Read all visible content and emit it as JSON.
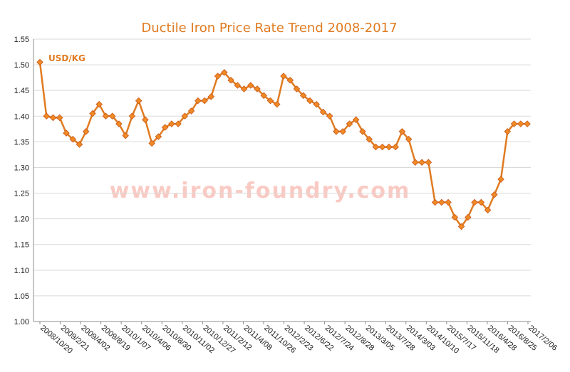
{
  "chart_data": {
    "type": "line",
    "title": "Ductile Iron Price Rate Trend 2008-2017",
    "unit_label": "USD/KG",
    "watermark": "www.iron-foundry.com",
    "ylim": [
      1.0,
      1.55
    ],
    "yticks": [
      "1.00",
      "1.05",
      "1.10",
      "1.15",
      "1.20",
      "1.25",
      "1.30",
      "1.35",
      "1.40",
      "1.45",
      "1.50",
      "1.55"
    ],
    "xtick_labels": [
      "2008/10/20",
      "2009/2/21",
      "2009/4/02",
      "2009/8/19",
      "2010/1/07",
      "2010/4/06",
      "2010/8/30",
      "2010/11/02",
      "2010/12/27",
      "2011/2/12",
      "2011/4/08",
      "2011/10/26",
      "2012/2/23",
      "2012/6/22",
      "2012/7/24",
      "2012/8/28",
      "2013/3/05",
      "2013/7/28",
      "2014/3/03",
      "2014/10/10",
      "2015/7/17",
      "2015/11/18",
      "2016/4/28",
      "2016/8/25",
      "2017/2/06"
    ],
    "grid": true,
    "color": "#e07b21",
    "series": [
      {
        "values": [
          1.505,
          1.4,
          1.397,
          1.397,
          1.367,
          1.355,
          1.345,
          1.37,
          1.405,
          1.423,
          1.4,
          1.4,
          1.385,
          1.362,
          1.4,
          1.43,
          1.393,
          1.347,
          1.36,
          1.378,
          1.385,
          1.385,
          1.4,
          1.41,
          1.43,
          1.43,
          1.438,
          1.478,
          1.485,
          1.47,
          1.46,
          1.453,
          1.46,
          1.453,
          1.44,
          1.43,
          1.423,
          1.478,
          1.47,
          1.453,
          1.44,
          1.43,
          1.423,
          1.408,
          1.4,
          1.37,
          1.37,
          1.385,
          1.393,
          1.37,
          1.355,
          1.34,
          1.34,
          1.34,
          1.34,
          1.37,
          1.355,
          1.31,
          1.31,
          1.31,
          1.232,
          1.232,
          1.232,
          1.203,
          1.185,
          1.203,
          1.232,
          1.232,
          1.217,
          1.247,
          1.277,
          1.37,
          1.385,
          1.385,
          1.385
        ]
      }
    ]
  }
}
